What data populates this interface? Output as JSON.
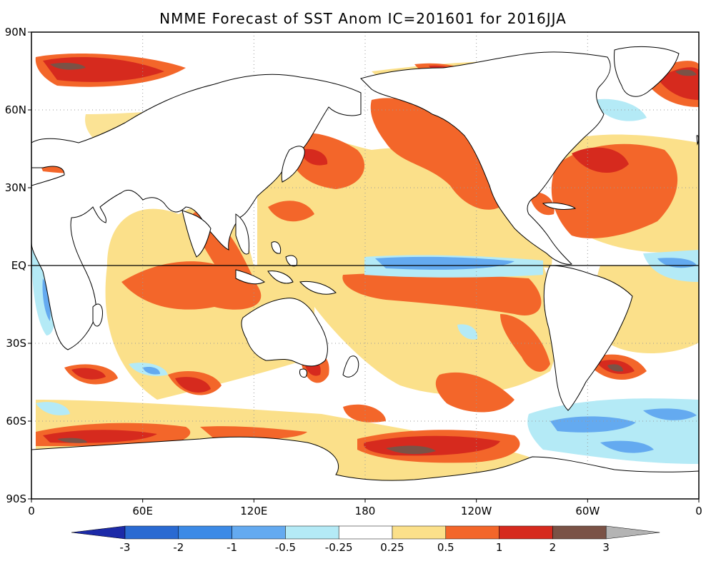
{
  "title": "NMME Forecast of SST Anom  IC=201601 for 2016JJA",
  "lat_ticks": [
    {
      "label": "90N",
      "lat": 90
    },
    {
      "label": "60N",
      "lat": 60
    },
    {
      "label": "30N",
      "lat": 30
    },
    {
      "label": "EQ",
      "lat": 0
    },
    {
      "label": "30S",
      "lat": -30
    },
    {
      "label": "60S",
      "lat": -60
    },
    {
      "label": "90S",
      "lat": -90
    }
  ],
  "lon_ticks": [
    {
      "label": "0",
      "lon": 0
    },
    {
      "label": "60E",
      "lon": 60
    },
    {
      "label": "120E",
      "lon": 120
    },
    {
      "label": "180",
      "lon": 180
    },
    {
      "label": "120W",
      "lon": 240
    },
    {
      "label": "60W",
      "lon": 300
    },
    {
      "label": "0",
      "lon": 360
    }
  ],
  "colorbar": {
    "labels": [
      "-3",
      "-2",
      "-1",
      "-0.5",
      "-0.25",
      "0.25",
      "0.5",
      "1",
      "2",
      "3"
    ],
    "low_color": "#1c2aa8",
    "high_color": "#b4b4b4",
    "bins": [
      {
        "from": -3,
        "to": -2,
        "color": "#2a6ad2"
      },
      {
        "from": -2,
        "to": -1,
        "color": "#3c8ae6"
      },
      {
        "from": -1,
        "to": -0.5,
        "color": "#64aaf0"
      },
      {
        "from": -0.5,
        "to": -0.25,
        "color": "#b4eaf6"
      },
      {
        "from": -0.25,
        "to": 0.25,
        "color": "#ffffff"
      },
      {
        "from": 0.25,
        "to": 0.5,
        "color": "#fbe08a"
      },
      {
        "from": 0.5,
        "to": 1,
        "color": "#f3662a"
      },
      {
        "from": 1,
        "to": 2,
        "color": "#d62a1e"
      },
      {
        "from": 2,
        "to": 3,
        "color": "#7a5246"
      }
    ]
  },
  "colors": {
    "land": "#ffffff",
    "coast": "#000000",
    "grid": "#9a9a9a",
    "equator": "#000000"
  }
}
